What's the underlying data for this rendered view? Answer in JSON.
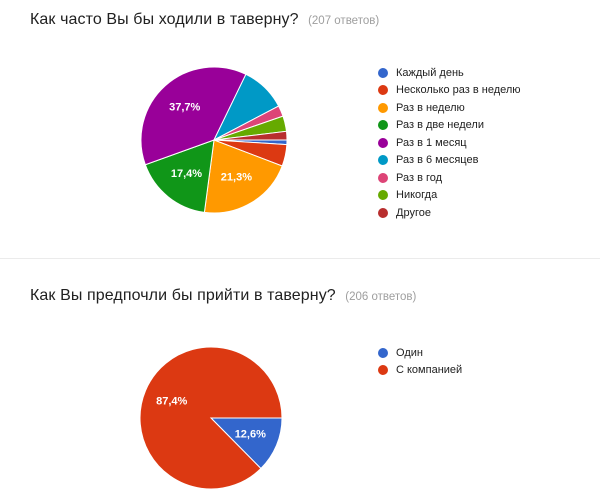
{
  "page": {
    "background": "#ffffff",
    "divider_color": "#ebebeb"
  },
  "chart_data": [
    {
      "type": "pie",
      "title": "Как часто Вы бы ходили в таверну?",
      "responses_note": "(207 ответов)",
      "legend_position": "right",
      "start_angle_deg": 90,
      "direction": "clockwise",
      "slices": [
        {
          "label": "Каждый день",
          "percent": 1.0,
          "color": "#3366cc",
          "data_label": null
        },
        {
          "label": "Несколько раз в неделю",
          "percent": 4.8,
          "color": "#dc3912",
          "data_label": null
        },
        {
          "label": "Раз в неделю",
          "percent": 21.3,
          "color": "#ff9900",
          "data_label": "21,3%"
        },
        {
          "label": "Раз в две недели",
          "percent": 17.4,
          "color": "#109618",
          "data_label": "17,4%"
        },
        {
          "label": "Раз в 1 месяц",
          "percent": 37.7,
          "color": "#990099",
          "data_label": "37,7%"
        },
        {
          "label": "Раз в 6 месяцев",
          "percent": 10.1,
          "color": "#0099c6",
          "data_label": null
        },
        {
          "label": "Раз в год",
          "percent": 2.4,
          "color": "#dd4477",
          "data_label": null
        },
        {
          "label": "Никогда",
          "percent": 3.4,
          "color": "#66aa00",
          "data_label": null
        },
        {
          "label": "Другое",
          "percent": 1.9,
          "color": "#b82e2e",
          "data_label": null
        }
      ]
    },
    {
      "type": "pie",
      "title": "Как Вы предпочли бы прийти в таверну?",
      "responses_note": "(206 ответов)",
      "legend_position": "right",
      "start_angle_deg": 90,
      "direction": "clockwise",
      "slices": [
        {
          "label": "Один",
          "percent": 12.6,
          "color": "#3366cc",
          "data_label": "12,6%"
        },
        {
          "label": "С компанией",
          "percent": 87.4,
          "color": "#dc3912",
          "data_label": "87,4%"
        }
      ]
    }
  ]
}
